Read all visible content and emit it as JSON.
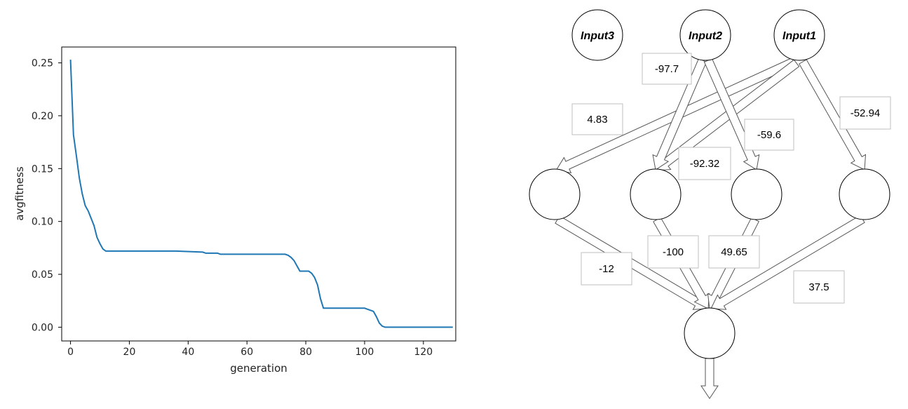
{
  "chart_data": {
    "type": "line",
    "xlabel": "generation",
    "ylabel": "avgfitness",
    "xlim": [
      -3,
      131
    ],
    "ylim": [
      -0.013,
      0.265
    ],
    "xticks": [
      0,
      20,
      40,
      60,
      80,
      100,
      120
    ],
    "xtick_labels": [
      "0",
      "20",
      "40",
      "60",
      "80",
      "100",
      "120"
    ],
    "yticks": [
      0.0,
      0.05,
      0.1,
      0.15,
      0.2,
      0.25
    ],
    "ytick_labels": [
      "0.00",
      "0.05",
      "0.10",
      "0.15",
      "0.20",
      "0.25"
    ],
    "grid": false,
    "line_color": "#1f77b4",
    "series": [
      {
        "x": [
          0,
          1,
          2,
          3,
          4,
          5,
          6,
          7,
          8,
          9,
          10,
          11,
          12,
          13,
          20,
          36,
          45,
          46,
          50,
          51,
          65,
          66,
          72,
          73,
          74,
          75,
          76,
          77,
          78,
          80,
          81,
          82,
          83,
          84,
          85,
          86,
          87,
          100,
          101,
          102,
          103,
          104,
          105,
          106,
          107,
          130
        ],
        "y": [
          0.253,
          0.182,
          0.162,
          0.141,
          0.126,
          0.115,
          0.11,
          0.103,
          0.096,
          0.085,
          0.079,
          0.074,
          0.072,
          0.072,
          0.072,
          0.072,
          0.071,
          0.07,
          0.07,
          0.069,
          0.069,
          0.069,
          0.069,
          0.069,
          0.068,
          0.066,
          0.063,
          0.058,
          0.053,
          0.053,
          0.053,
          0.051,
          0.047,
          0.04,
          0.027,
          0.018,
          0.018,
          0.018,
          0.017,
          0.016,
          0.015,
          0.01,
          0.004,
          0.001,
          0.0,
          0.0
        ]
      }
    ]
  },
  "network": {
    "input_nodes": [
      {
        "label": "Input3"
      },
      {
        "label": "Input2"
      },
      {
        "label": "Input1"
      }
    ],
    "weights": [
      {
        "label": "-97.7"
      },
      {
        "label": "4.83"
      },
      {
        "label": "-52.94"
      },
      {
        "label": "-59.6"
      },
      {
        "label": "-92.32"
      },
      {
        "label": "-12"
      },
      {
        "label": "-100"
      },
      {
        "label": "49.65"
      },
      {
        "label": "37.5"
      }
    ]
  }
}
